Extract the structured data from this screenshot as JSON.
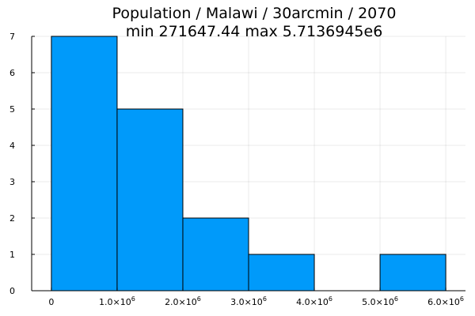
{
  "chart_data": {
    "type": "bar",
    "title": "Population / Malawi / 30arcmin / 2070",
    "subtitle": "min 271647.44  max 5.7136945e6",
    "xlabel": "",
    "ylabel": "",
    "xlim": [
      -300000,
      6300000
    ],
    "ylim": [
      0,
      7
    ],
    "grid": true,
    "bar_color": "#009AFA",
    "bins": [
      {
        "start": 0,
        "end": 1000000,
        "count": 7
      },
      {
        "start": 1000000,
        "end": 2000000,
        "count": 5
      },
      {
        "start": 2000000,
        "end": 3000000,
        "count": 2
      },
      {
        "start": 3000000,
        "end": 4000000,
        "count": 1
      },
      {
        "start": 4000000,
        "end": 5000000,
        "count": 0
      },
      {
        "start": 5000000,
        "end": 6000000,
        "count": 1
      }
    ],
    "x_ticks": [
      {
        "value": 0,
        "label": "0",
        "base": "",
        "exp": ""
      },
      {
        "value": 1000000,
        "label": "",
        "base": "1.0×10",
        "exp": "6"
      },
      {
        "value": 2000000,
        "label": "",
        "base": "2.0×10",
        "exp": "6"
      },
      {
        "value": 3000000,
        "label": "",
        "base": "3.0×10",
        "exp": "6"
      },
      {
        "value": 4000000,
        "label": "",
        "base": "4.0×10",
        "exp": "6"
      },
      {
        "value": 5000000,
        "label": "",
        "base": "5.0×10",
        "exp": "6"
      },
      {
        "value": 6000000,
        "label": "",
        "base": "6.0×10",
        "exp": "6"
      }
    ],
    "y_ticks": [
      0,
      1,
      2,
      3,
      4,
      5,
      6,
      7
    ]
  }
}
